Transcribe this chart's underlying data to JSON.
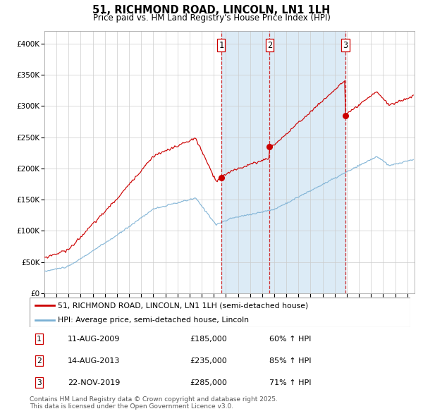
{
  "title": "51, RICHMOND ROAD, LINCOLN, LN1 1LH",
  "subtitle": "Price paid vs. HM Land Registry's House Price Index (HPI)",
  "sale_color": "#cc0000",
  "hpi_color": "#7ab0d4",
  "purchase_dates": [
    2009.614,
    2013.618,
    2019.896
  ],
  "purchase_prices": [
    185000,
    235000,
    285000
  ],
  "purchase_labels": [
    "1",
    "2",
    "3"
  ],
  "yticks": [
    0,
    50000,
    100000,
    150000,
    200000,
    250000,
    300000,
    350000,
    400000
  ],
  "ytick_labels": [
    "£0",
    "£50K",
    "£100K",
    "£150K",
    "£200K",
    "£250K",
    "£300K",
    "£350K",
    "£400K"
  ],
  "xlim": [
    1995.0,
    2025.6
  ],
  "ylim": [
    0,
    420000
  ],
  "legend_line1": "51, RICHMOND ROAD, LINCOLN, LN1 1LH (semi-detached house)",
  "legend_line2": "HPI: Average price, semi-detached house, Lincoln",
  "table_entries": [
    {
      "num": "1",
      "date": "11-AUG-2009",
      "price": "£185,000",
      "pct": "60% ↑ HPI"
    },
    {
      "num": "2",
      "date": "14-AUG-2013",
      "price": "£235,000",
      "pct": "85% ↑ HPI"
    },
    {
      "num": "3",
      "date": "22-NOV-2019",
      "price": "£285,000",
      "pct": "71% ↑ HPI"
    }
  ],
  "footnote1": "Contains HM Land Registry data © Crown copyright and database right 2025.",
  "footnote2": "This data is licensed under the Open Government Licence v3.0."
}
